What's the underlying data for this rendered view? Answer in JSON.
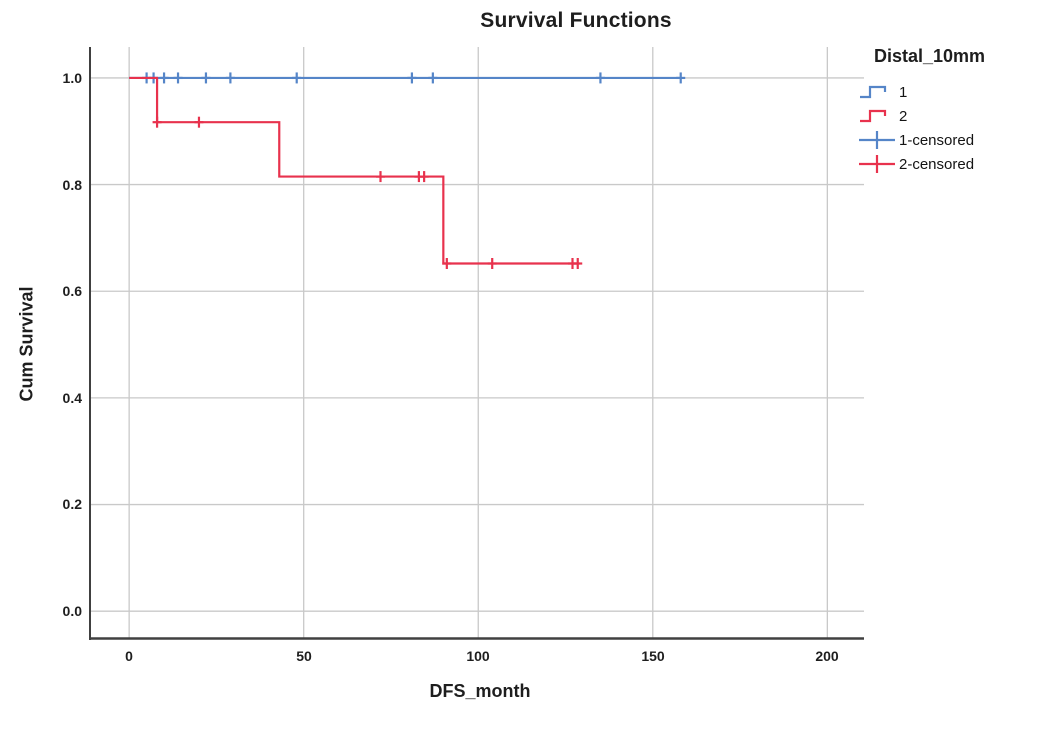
{
  "figure": {
    "title": "Survival Functions",
    "x_axis_label": "DFS_month",
    "y_axis_label": "Cum Survival"
  },
  "legend": {
    "title": "Distal_10mm",
    "items": [
      {
        "label": "1",
        "symbol": "step-line",
        "color": "#5585C8"
      },
      {
        "label": "2",
        "symbol": "step-line",
        "color": "#E8324D"
      },
      {
        "label": "1-censored",
        "symbol": "plus-marker",
        "color": "#5585C8"
      },
      {
        "label": "2-censored",
        "symbol": "plus-marker",
        "color": "#E8324D"
      }
    ]
  },
  "colors": {
    "group1_blue": "#5585C8",
    "group2_red": "#E8324D",
    "gridline": "#C9C9C9",
    "axis_spine": "#404040",
    "text": "#1E1E1E",
    "background": "#FFFFFF"
  },
  "chart_data": {
    "type": "line",
    "subtype": "kaplan_meier_step",
    "title": "Survival Functions",
    "xlabel": "DFS_month",
    "ylabel": "Cum Survival",
    "xlim": [
      -11.5,
      210.5
    ],
    "ylim": [
      -0.054,
      1.058
    ],
    "xticks": [
      0,
      50,
      100,
      150,
      200
    ],
    "xtick_labels": [
      "0",
      "50",
      "100",
      "150",
      "200"
    ],
    "yticks": [
      0.0,
      0.2,
      0.4,
      0.6,
      0.8,
      1.0
    ],
    "ytick_labels_top_to_bottom": [
      "1.0",
      "0.8",
      "0.6",
      "0.4",
      "0.2",
      "0.0"
    ],
    "grid": true,
    "grid_color": "#C9C9C9",
    "spine_color": "#404040",
    "legend_title": "Distal_10mm",
    "legend_position": "top-right",
    "series": [
      {
        "name": "1",
        "group": "Distal_10mm = 1",
        "color": "#5585C8",
        "points": [
          [
            0,
            1.0
          ],
          [
            158,
            1.0
          ]
        ],
        "censored": [
          [
            5,
            1.0
          ],
          [
            7,
            1.0
          ],
          [
            10,
            1.0
          ],
          [
            14,
            1.0
          ],
          [
            22,
            1.0
          ],
          [
            29,
            1.0
          ],
          [
            48,
            1.0
          ],
          [
            81,
            1.0
          ],
          [
            87,
            1.0
          ],
          [
            135,
            1.0
          ],
          [
            158,
            1.0
          ]
        ]
      },
      {
        "name": "2",
        "group": "Distal_10mm = 2",
        "color": "#E8324D",
        "points": [
          [
            0,
            1.0
          ],
          [
            8,
            0.917
          ],
          [
            43,
            0.815
          ],
          [
            90,
            0.652
          ],
          [
            129,
            0.652
          ]
        ],
        "censored": [
          [
            8,
            0.917
          ],
          [
            20,
            0.917
          ],
          [
            72,
            0.815
          ],
          [
            83,
            0.815
          ],
          [
            84.5,
            0.815
          ],
          [
            91,
            0.652
          ],
          [
            104,
            0.652
          ],
          [
            127,
            0.652
          ],
          [
            128.5,
            0.652
          ]
        ]
      }
    ]
  }
}
